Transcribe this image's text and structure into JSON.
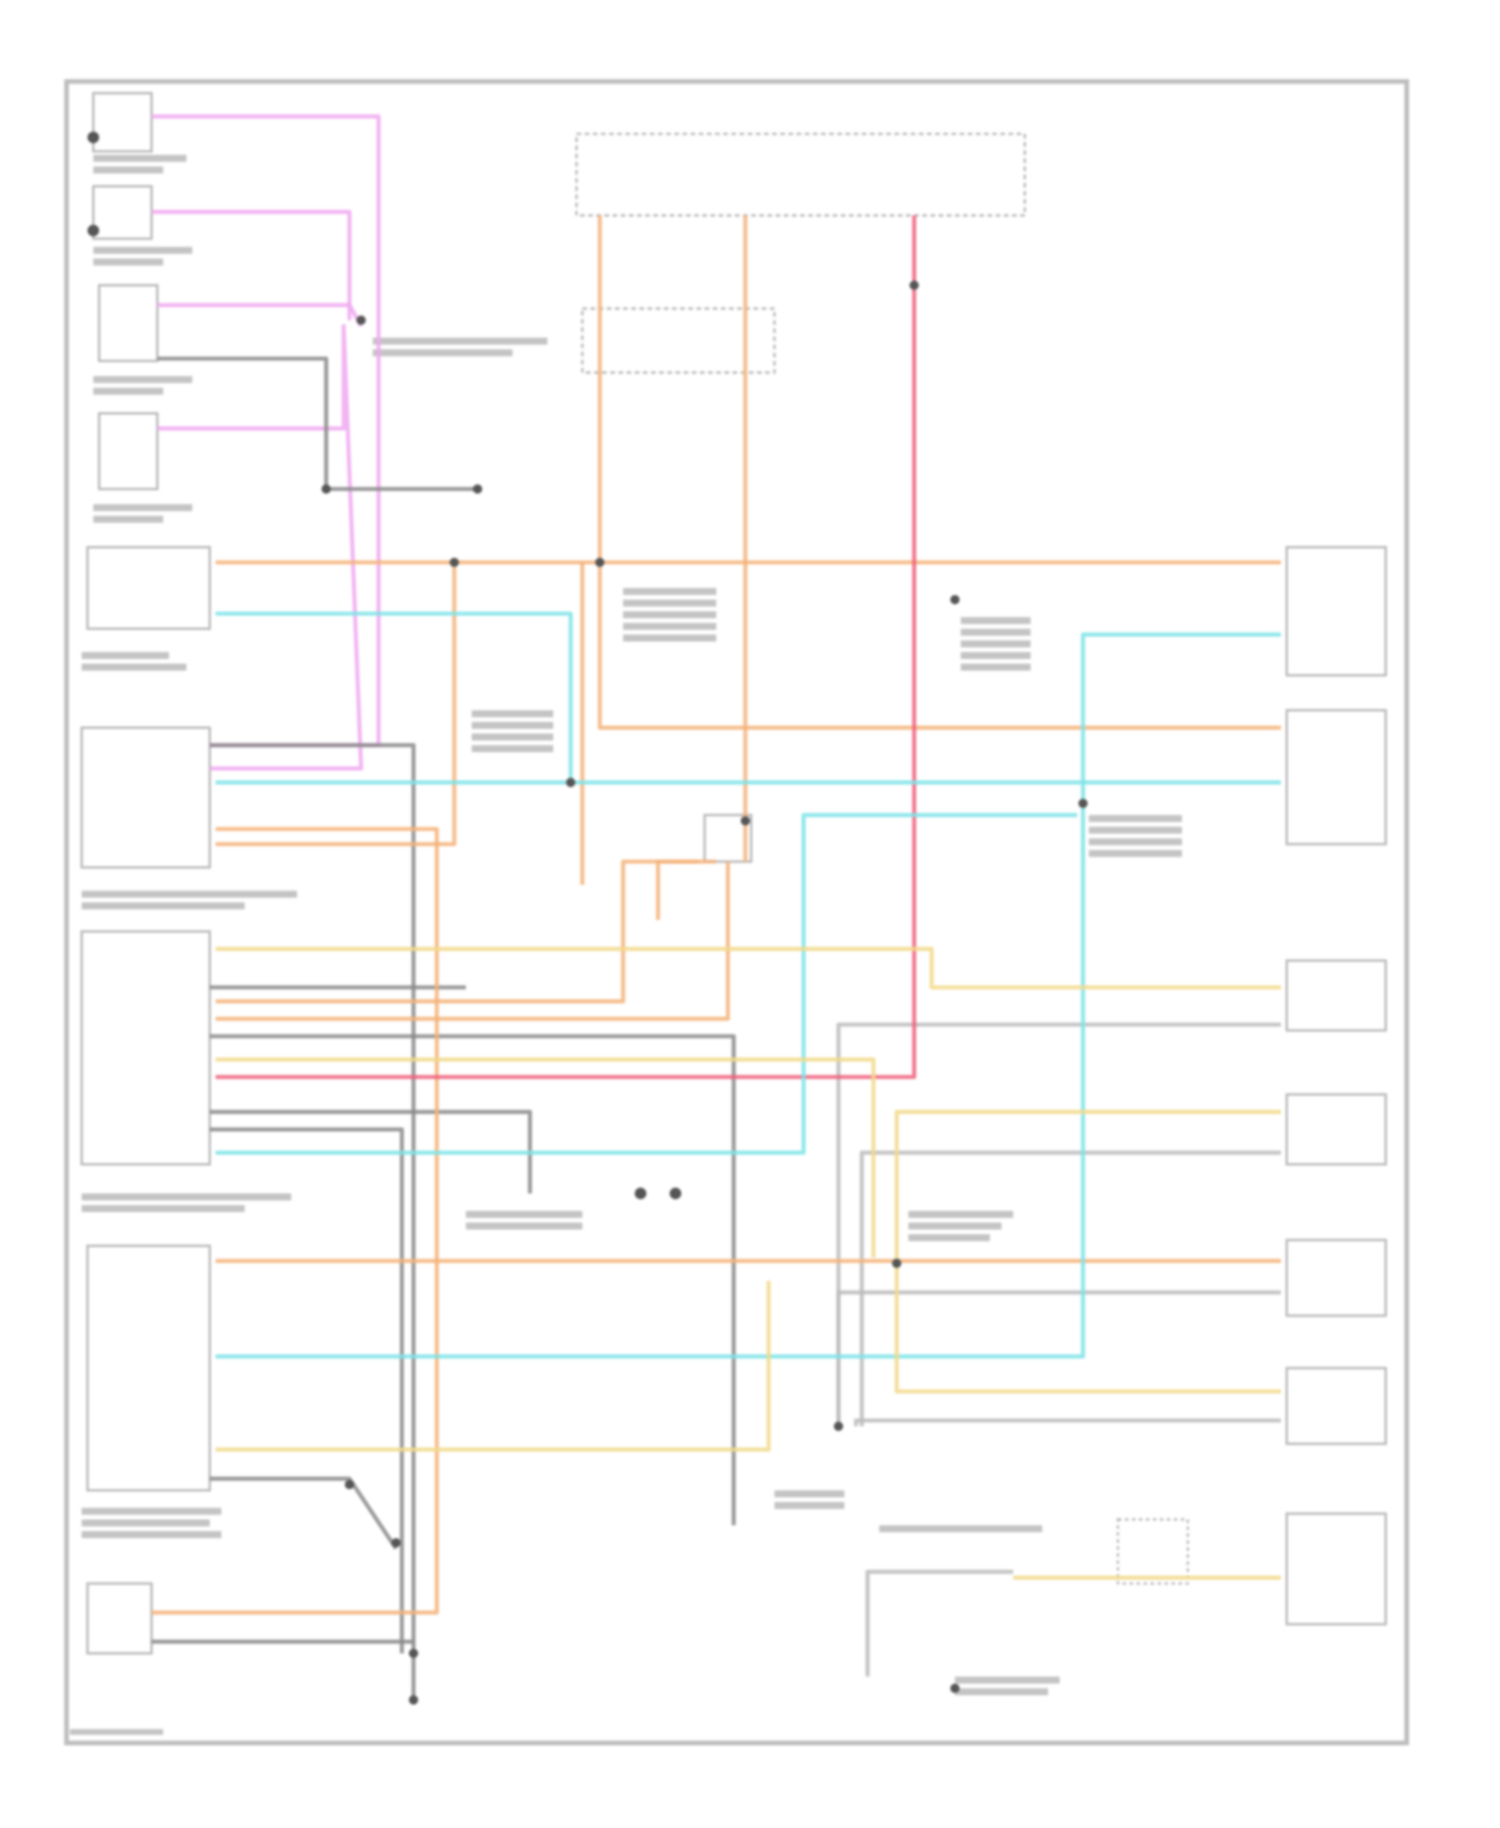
{
  "diagram": {
    "type": "wiring-schematic",
    "wire_colors": {
      "pink": "#f0a8f0",
      "orange": "#f5b37a",
      "red": "#f0607a",
      "cyan": "#7ee3e8",
      "yellow": "#f2d98a",
      "gray": "#8a8a8a",
      "frame": "#bdbdbd"
    },
    "text_note": ""
  }
}
